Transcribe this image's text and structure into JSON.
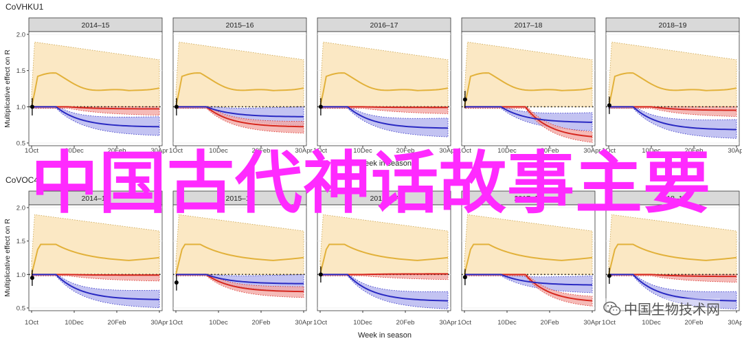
{
  "figure": {
    "y_axis_label": "Multiplicative effect on R",
    "x_axis_label": "Week in season",
    "overlay_text": "中国古代神话故事主要",
    "watermark_text": "中国生物技术网"
  },
  "chart_data": [
    {
      "type": "line",
      "title": "CoVHKU1",
      "panels": [
        "2014–15",
        "2015–16",
        "2016–17",
        "2017–18",
        "2018–19"
      ],
      "x_ticks": [
        "1Oct",
        "10Dec",
        "20Feb",
        "30Apr"
      ],
      "y_ticks": [
        "0.5",
        "1.0",
        "1.5",
        "2.0"
      ],
      "ylim": [
        0.5,
        2.0
      ],
      "xlim": [
        0,
        210
      ],
      "reference_line": 1.0,
      "series_colors": {
        "yellow": "#e2b13a",
        "red": "#d6281f",
        "blue": "#2929c2"
      }
    },
    {
      "type": "line",
      "title": "CoVOC43",
      "panels": [
        "2014–15",
        "2015–16",
        "2016–17",
        "2017–18",
        "2018–19"
      ],
      "x_ticks": [
        "1Oct",
        "10Dec",
        "20Feb",
        "30Apr"
      ],
      "y_ticks": [
        "0.5",
        "1.0",
        "1.5",
        "2.0"
      ],
      "ylim": [
        0.5,
        2.0
      ],
      "xlim": [
        0,
        210
      ],
      "reference_line": 1.0,
      "series_colors": {
        "yellow": "#e2b13a",
        "red": "#d6281f",
        "blue": "#2929c2"
      }
    }
  ]
}
